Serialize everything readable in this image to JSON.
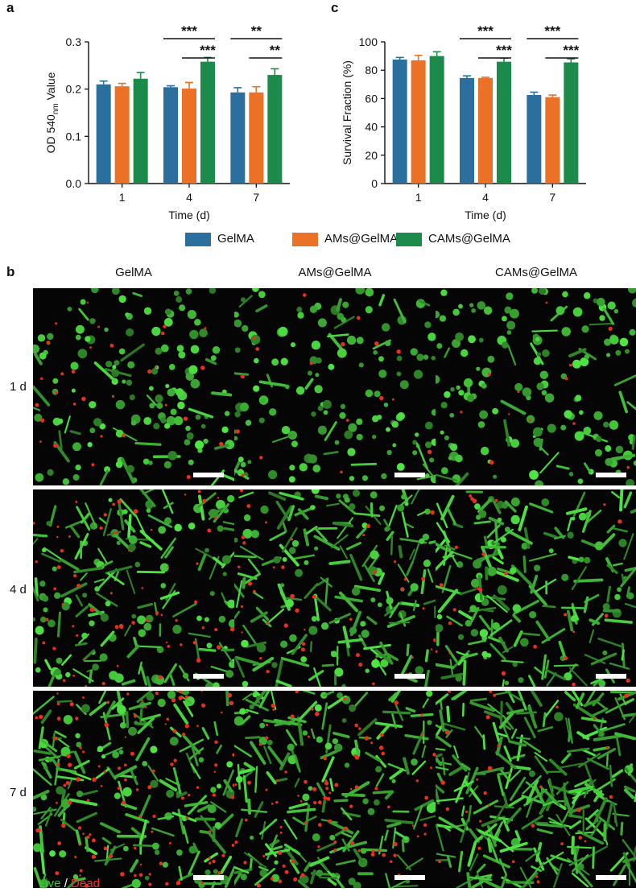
{
  "panel_labels": {
    "a": "a",
    "b": "b",
    "c": "c"
  },
  "colors": {
    "GelMA": "#2b6f9f",
    "AMs@GelMA": "#ea7126",
    "CAMs@GelMA": "#1c8a4a",
    "live": "#35c43a",
    "dead": "#ff3020"
  },
  "legend": [
    "GelMA",
    "AMs@GelMA",
    "CAMs@GelMA"
  ],
  "chart_data": [
    {
      "type": "bar",
      "panel": "a",
      "categories": [
        "1",
        "4",
        "7"
      ],
      "series": [
        {
          "name": "GelMA",
          "values": [
            0.21,
            0.204,
            0.193
          ],
          "errors": [
            0.007,
            0.003,
            0.01
          ]
        },
        {
          "name": "AMs@GelMA",
          "values": [
            0.206,
            0.201,
            0.193
          ],
          "errors": [
            0.006,
            0.013,
            0.012
          ]
        },
        {
          "name": "CAMs@GelMA",
          "values": [
            0.222,
            0.258,
            0.23
          ],
          "errors": [
            0.013,
            0.009,
            0.013
          ]
        }
      ],
      "xlabel": "Time (d)",
      "ylabel_main": "OD 540",
      "ylabel_sub": "nm",
      "ylabel_suffix": " Value",
      "ylim": [
        0,
        0.3
      ],
      "yticks": [
        "0.0",
        "0.1",
        "0.2",
        "0.3"
      ],
      "significance": [
        {
          "group": 1,
          "from": 0,
          "to": 2,
          "label": "***"
        },
        {
          "group": 1,
          "from": 1,
          "to": 2,
          "label": "***"
        },
        {
          "group": 2,
          "from": 0,
          "to": 2,
          "label": "**"
        },
        {
          "group": 2,
          "from": 1,
          "to": 2,
          "label": "**"
        }
      ]
    },
    {
      "type": "bar",
      "panel": "c",
      "categories": [
        "1",
        "4",
        "7"
      ],
      "series": [
        {
          "name": "GelMA",
          "values": [
            87.5,
            74.5,
            62.5
          ],
          "errors": [
            1.5,
            1.5,
            2.0
          ]
        },
        {
          "name": "AMs@GelMA",
          "values": [
            87.0,
            74.5,
            61.0
          ],
          "errors": [
            3.5,
            0.5,
            1.5
          ]
        },
        {
          "name": "CAMs@GelMA",
          "values": [
            90.0,
            86.0,
            85.5
          ],
          "errors": [
            3.0,
            2.5,
            2.5
          ]
        }
      ],
      "xlabel": "Time (d)",
      "ylabel": "Survival  Fraction (%)",
      "ylim": [
        0,
        100
      ],
      "yticks": [
        "0",
        "20",
        "40",
        "60",
        "80",
        "100"
      ],
      "significance": [
        {
          "group": 1,
          "from": 0,
          "to": 2,
          "label": "***"
        },
        {
          "group": 1,
          "from": 1,
          "to": 2,
          "label": "***"
        },
        {
          "group": 2,
          "from": 0,
          "to": 2,
          "label": "***"
        },
        {
          "group": 2,
          "from": 1,
          "to": 2,
          "label": "***"
        }
      ]
    }
  ],
  "microscopy": {
    "columns": [
      "GelMA",
      "AMs@GelMA",
      "CAMs@GelMA"
    ],
    "rows": [
      "1 d",
      "4 d",
      "7 d"
    ],
    "stain_live": "Live",
    "stain_separator": " / ",
    "stain_dead": "Dead"
  }
}
